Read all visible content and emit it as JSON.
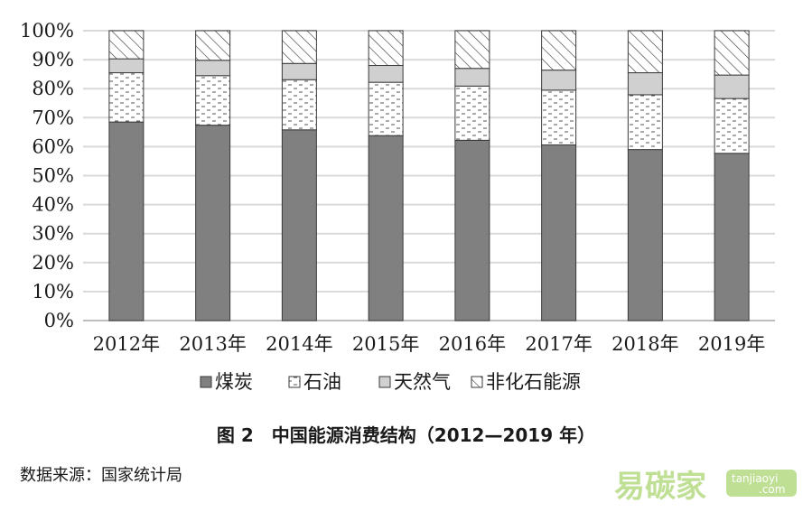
{
  "chart_data": {
    "type": "bar",
    "stacked": true,
    "categories": [
      "2012年",
      "2013年",
      "2014年",
      "2015年",
      "2016年",
      "2017年",
      "2018年",
      "2019年"
    ],
    "series": [
      {
        "name": "煤炭",
        "values": [
          68.5,
          67.4,
          65.8,
          63.8,
          62.2,
          60.6,
          59.0,
          57.7
        ],
        "color": "#808080",
        "pattern": "solid"
      },
      {
        "name": "石油",
        "values": [
          17.0,
          17.1,
          17.3,
          18.4,
          18.7,
          18.9,
          18.9,
          18.9
        ],
        "color": "#ffffff",
        "pattern": "dashes"
      },
      {
        "name": "天然气",
        "values": [
          4.8,
          5.3,
          5.6,
          5.8,
          6.1,
          6.9,
          7.6,
          8.1
        ],
        "color": "#d0d0d0",
        "pattern": "solid"
      },
      {
        "name": "非化石能源",
        "values": [
          9.7,
          10.2,
          11.3,
          12.0,
          13.0,
          13.6,
          14.5,
          15.3
        ],
        "color": "#ffffff",
        "pattern": "diagonal"
      }
    ],
    "y_ticks": [
      "0%",
      "10%",
      "20%",
      "30%",
      "40%",
      "50%",
      "60%",
      "70%",
      "80%",
      "90%",
      "100%"
    ],
    "ylim": [
      0,
      100
    ],
    "grid": true,
    "legend_position": "bottom"
  },
  "caption": "图 2　中国能源消费结构（2012—2019 年）",
  "source": "数据来源：国家统计局",
  "watermark": {
    "text": "易碳家",
    "badge": "tanjiaoyi",
    "badge_sub": ".com",
    "color": "#8cc63f"
  }
}
